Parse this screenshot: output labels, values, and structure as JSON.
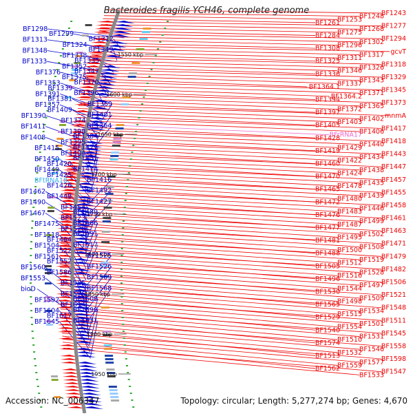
{
  "title": "Bacteroides fragilis YCH46, complete genome",
  "accession_text": "Accession: NC_006347",
  "topology_text": "Topology: circular; Length: 5,277,274 bp; Genes: 4,670",
  "colors": {
    "forward": "#0000cc",
    "reverse": "#ee0000",
    "rna": "#33aaee",
    "rrna": "#ee66cc",
    "backbone": "#888888"
  },
  "ticks": [
    "1550 kbp",
    "1600 kbp",
    "1650 kbp",
    "1700 kbp",
    "1750 kbp",
    "1800 kbp",
    "1850 kbp",
    "1900 kbp",
    "1950 kbp"
  ],
  "left_labels": [
    "BF1298",
    "BF1299",
    "BF1312",
    "BF1313",
    "BF1324",
    "BF1349",
    "BF1348",
    "BF1338",
    "BF1335",
    "BF1333",
    "BF1352",
    "BF1347",
    "BF1376",
    "BF1375",
    "BF1370",
    "BF1353",
    "BF1339",
    "BF1396",
    "BF1391",
    "BF1381",
    "BF1369",
    "BF1357",
    "BF1409",
    "BF1401",
    "BF1390",
    "BF1374",
    "BF1364",
    "BF1411",
    "BF1398",
    "BF1384",
    "BF1408",
    "BF1395",
    "BF1421",
    "BF1415",
    "BF1404",
    "BF1451",
    "BF1450",
    "BF1420",
    "BF1414",
    "BF1449",
    "BF1425",
    "BF1416",
    "BFtRNA18",
    "BF1426",
    "BF1492",
    "BF1462",
    "BF1448",
    "BF1427",
    "BF1490",
    "BF1454",
    "BF1489",
    "BF1467",
    "BF1523",
    "BF1486",
    "BF1475",
    "BF1520",
    "BF1491",
    "BF1518",
    "BF1494",
    "BF1517",
    "BF1504",
    "BF1522",
    "BF1525",
    "BF1561",
    "BF1552",
    "BF1526",
    "BF1560",
    "BF1586",
    "BF1569",
    "BF1553",
    "BF1585",
    "BF1568",
    "bioD",
    "BF1576",
    "BF1609",
    "BF1592",
    "BF1614",
    "BF1599",
    "BF1604",
    "BF1617",
    "BF1631",
    "BF1645"
  ],
  "right_labels": [
    "BF1243",
    "BF1248",
    "BF1253",
    "BF1261",
    "BF1277",
    "BF1268",
    "BF1275",
    "BF1284",
    "BF1294",
    "BF1302",
    "BF1296",
    "BF1308",
    "gcvT",
    "BF1317",
    "BF1311",
    "BF1325",
    "BF1318",
    "BF1326",
    "BF1346",
    "BF1336",
    "BF1329",
    "BF1343",
    "BF1337",
    "BF1364.1",
    "BF1345",
    "BF1371",
    "BF1364.2",
    "BF1394",
    "BF1373",
    "BF1365",
    "BF1372",
    "BF1397",
    "mnmA",
    "BF1402",
    "BF1403",
    "BF1405",
    "BF1417",
    "BF1406",
    "BFrRNA17",
    "BF1428",
    "BF1418",
    "BF1440",
    "BF1429",
    "BF1419",
    "BF1443",
    "BF1434",
    "BF1422",
    "BF1460",
    "BF1447",
    "BF1438",
    "BF1424",
    "BF1470",
    "BF1457",
    "BF1435",
    "BF1478",
    "BF1465",
    "BF1455",
    "BF1439",
    "BF1480",
    "BF1472",
    "BF1458",
    "BF1446",
    "BF1483",
    "BF1476",
    "BF1461",
    "BF1499",
    "BF1487",
    "BF1477",
    "BF1463",
    "BF1502",
    "BF1495",
    "BF1481",
    "BF1471",
    "BF1508",
    "BF1500",
    "BF1488",
    "BF1479",
    "BF1519",
    "BF1512",
    "BF1505",
    "BF1482",
    "BF1528",
    "BF1516",
    "BF1496",
    "BF1506",
    "BF1497",
    "BF1544",
    "BF1530",
    "BF1521",
    "BF1509",
    "BF1498",
    "BF1565",
    "BF1548",
    "BF1534",
    "BF1515",
    "BF1529",
    "BF1511",
    "BF1501",
    "BF1554",
    "BF1540",
    "BF1545",
    "BF1531",
    "BF1510",
    "BF1574",
    "BF1558",
    "BF1546",
    "BF1532",
    "BF1513",
    "BF1598",
    "BF1577",
    "BF1559",
    "BF1562",
    "BF1547",
    "BF1533"
  ]
}
